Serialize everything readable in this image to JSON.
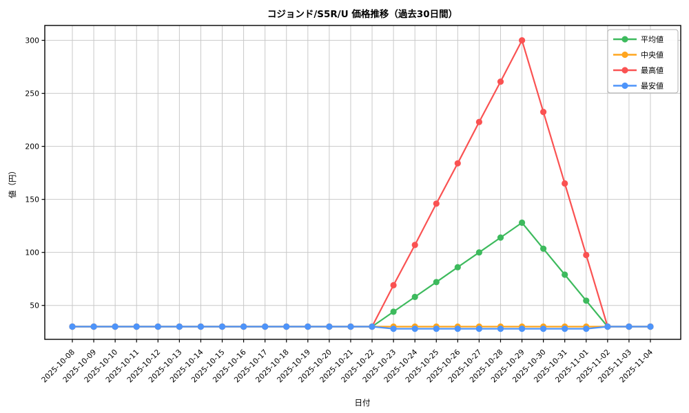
{
  "chart_data": {
    "type": "line",
    "title": "コジョンド/S5R/U 価格推移（過去30日間）",
    "xlabel": "日付",
    "ylabel": "値（円）",
    "x": [
      "2025-10-08",
      "2025-10-09",
      "2025-10-10",
      "2025-10-11",
      "2025-10-12",
      "2025-10-13",
      "2025-10-14",
      "2025-10-15",
      "2025-10-16",
      "2025-10-17",
      "2025-10-18",
      "2025-10-19",
      "2025-10-20",
      "2025-10-21",
      "2025-10-22",
      "2025-10-23",
      "2025-10-24",
      "2025-10-25",
      "2025-10-26",
      "2025-10-27",
      "2025-10-28",
      "2025-10-29",
      "2025-10-30",
      "2025-10-31",
      "2025-11-01",
      "2025-11-02",
      "2025-11-03",
      "2025-11-04"
    ],
    "series": [
      {
        "name": "平均値",
        "color": "#3dba5d",
        "values": [
          30,
          30,
          30,
          30,
          30,
          30,
          30,
          30,
          30,
          30,
          30,
          30,
          30,
          30,
          30,
          44,
          58,
          72,
          86,
          100,
          114,
          128,
          103.5,
          79,
          54.5,
          30,
          30,
          30
        ]
      },
      {
        "name": "中央値",
        "color": "#ffa51e",
        "values": [
          30,
          30,
          30,
          30,
          30,
          30,
          30,
          30,
          30,
          30,
          30,
          30,
          30,
          30,
          30,
          30,
          30,
          30,
          30,
          30,
          30,
          30,
          30,
          30,
          30,
          30,
          30,
          30
        ]
      },
      {
        "name": "最高値",
        "color": "#fa5252",
        "values": [
          30,
          30,
          30,
          30,
          30,
          30,
          30,
          30,
          30,
          30,
          30,
          30,
          30,
          30,
          30,
          69,
          107,
          146,
          184,
          223,
          261,
          300,
          232.5,
          165,
          97.5,
          30,
          30,
          30
        ]
      },
      {
        "name": "最安値",
        "color": "#4d94fa",
        "values": [
          30,
          30,
          30,
          30,
          30,
          30,
          30,
          30,
          30,
          30,
          30,
          30,
          30,
          30,
          30,
          28,
          28,
          28,
          28,
          28,
          28,
          28,
          28,
          28,
          28,
          30,
          30,
          30
        ]
      }
    ],
    "ylim": [
      18,
      314
    ],
    "yticks": [
      50,
      100,
      150,
      200,
      250,
      300
    ],
    "grid": true,
    "legend_position": "upper right"
  },
  "style": {
    "grid_color": "#c8c8c8",
    "spine_color": "#000000",
    "background": "#ffffff",
    "legend_border": "#b0b0b0"
  }
}
